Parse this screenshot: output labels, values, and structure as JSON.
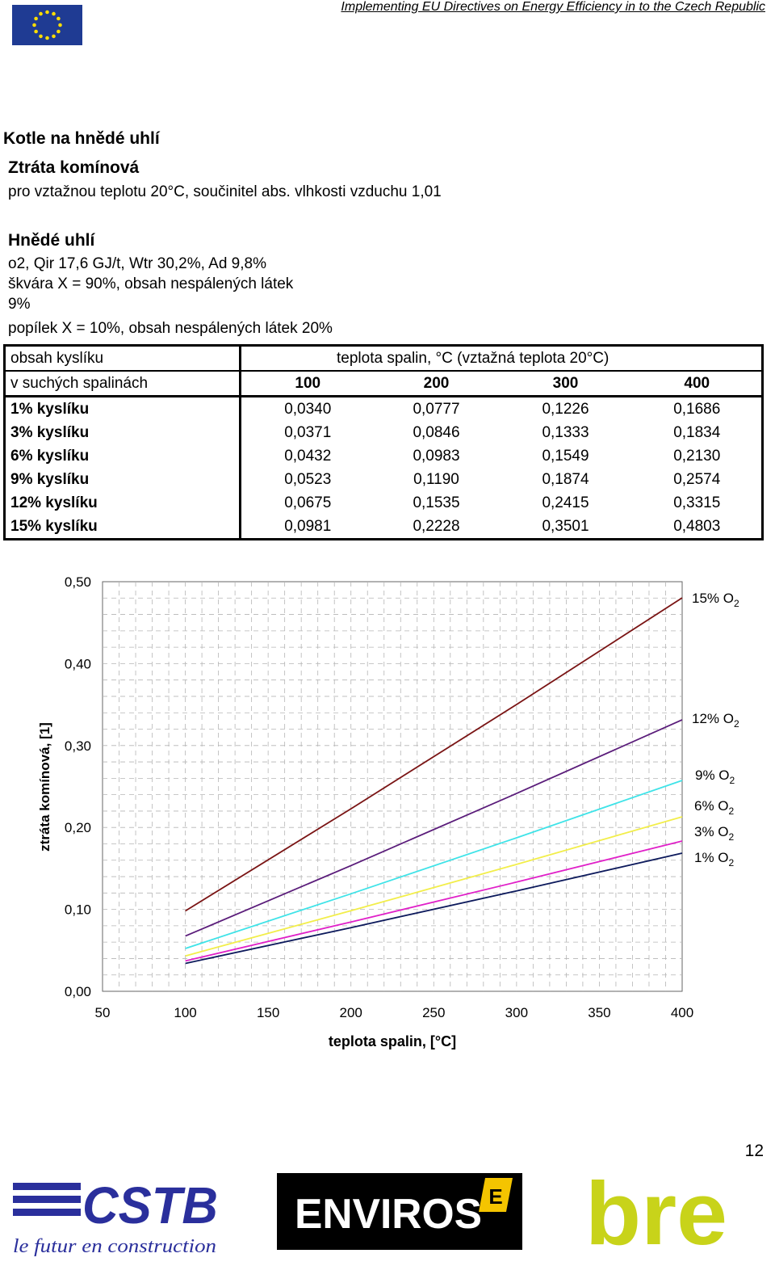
{
  "header": {
    "title": "Implementing EU Directives on Energy Efficiency in to the Czech Republic"
  },
  "doc": {
    "title": "Kotle na hnědé uhlí",
    "subtitle": "Ztráta komínová",
    "note": "pro vztažnou teplotu 20°C, součinitel abs. vlhkosti vzduchu 1,01",
    "fuel_title": "Hnědé uhlí",
    "fuel_line1": "o2, Qir 17,6 GJ/t, Wtr 30,2%, Ad 9,8%",
    "fuel_line2": "škvára X = 90%, obsah nespálených látek",
    "fuel_line3": "9%",
    "fuel_line4": "popílek X = 10%, obsah nespálených látek 20%"
  },
  "table": {
    "head1_left": "obsah kyslíku",
    "head1_right": "teplota spalin, °C  (vztažná teplota 20°C)",
    "head2_left": "v suchých spalinách",
    "temps": [
      "100",
      "200",
      "300",
      "400"
    ],
    "rows": [
      {
        "label": "1% kyslíku",
        "values": [
          "0,0340",
          "0,0777",
          "0,1226",
          "0,1686"
        ]
      },
      {
        "label": "3% kyslíku",
        "values": [
          "0,0371",
          "0,0846",
          "0,1333",
          "0,1834"
        ]
      },
      {
        "label": "6% kyslíku",
        "values": [
          "0,0432",
          "0,0983",
          "0,1549",
          "0,2130"
        ]
      },
      {
        "label": "9% kyslíku",
        "values": [
          "0,0523",
          "0,1190",
          "0,1874",
          "0,2574"
        ]
      },
      {
        "label": "12% kyslíku",
        "values": [
          "0,0675",
          "0,1535",
          "0,2415",
          "0,3315"
        ]
      },
      {
        "label": "15% kyslíku",
        "values": [
          "0,0981",
          "0,2228",
          "0,3501",
          "0,4803"
        ]
      }
    ]
  },
  "chart_data": {
    "type": "line",
    "title": "",
    "xlabel": "teplota spalin, [°C]",
    "ylabel": "ztráta komínová, [1]",
    "xlim": [
      50,
      400
    ],
    "ylim": [
      0,
      0.5
    ],
    "xticks": [
      "50",
      "100",
      "150",
      "200",
      "250",
      "300",
      "350",
      "400"
    ],
    "yticks": [
      "0,00",
      "0,10",
      "0,20",
      "0,30",
      "0,40",
      "0,50"
    ],
    "grid": true,
    "x": [
      100,
      200,
      300,
      400
    ],
    "series": [
      {
        "name": "1% O2",
        "label_main": "1% O",
        "label_sub": "2",
        "color": "#0d1a5c",
        "values": [
          0.034,
          0.0777,
          0.1226,
          0.1686
        ]
      },
      {
        "name": "3% O2",
        "label_main": "3% O",
        "label_sub": "2",
        "color": "#e020c8",
        "values": [
          0.0371,
          0.0846,
          0.1333,
          0.1834
        ]
      },
      {
        "name": "6% O2",
        "label_main": "6% O",
        "label_sub": "2",
        "color": "#f2ee4a",
        "values": [
          0.0432,
          0.0983,
          0.1549,
          0.213
        ]
      },
      {
        "name": "9% O2",
        "label_main": "9% O",
        "label_sub": "2",
        "color": "#3fe3e8",
        "values": [
          0.0523,
          0.119,
          0.1874,
          0.2574
        ]
      },
      {
        "name": "12% O2",
        "label_main": "12% O",
        "label_sub": "2",
        "color": "#5a1c7a",
        "values": [
          0.0675,
          0.1535,
          0.2415,
          0.3315
        ]
      },
      {
        "name": "15% O2",
        "label_main": "15% O",
        "label_sub": "2",
        "color": "#7a1414",
        "values": [
          0.0981,
          0.2228,
          0.3501,
          0.4803
        ]
      }
    ]
  },
  "footer": {
    "page_number": "12",
    "logo_cstb": "CSTB",
    "logo_cstb_tagline": "le futur en construction",
    "logo_enviros": "ENVIROS",
    "logo_bre": "bre",
    "brand_bre_color": "#c8d31a",
    "brand_cstb_color": "#2a2f9c"
  }
}
